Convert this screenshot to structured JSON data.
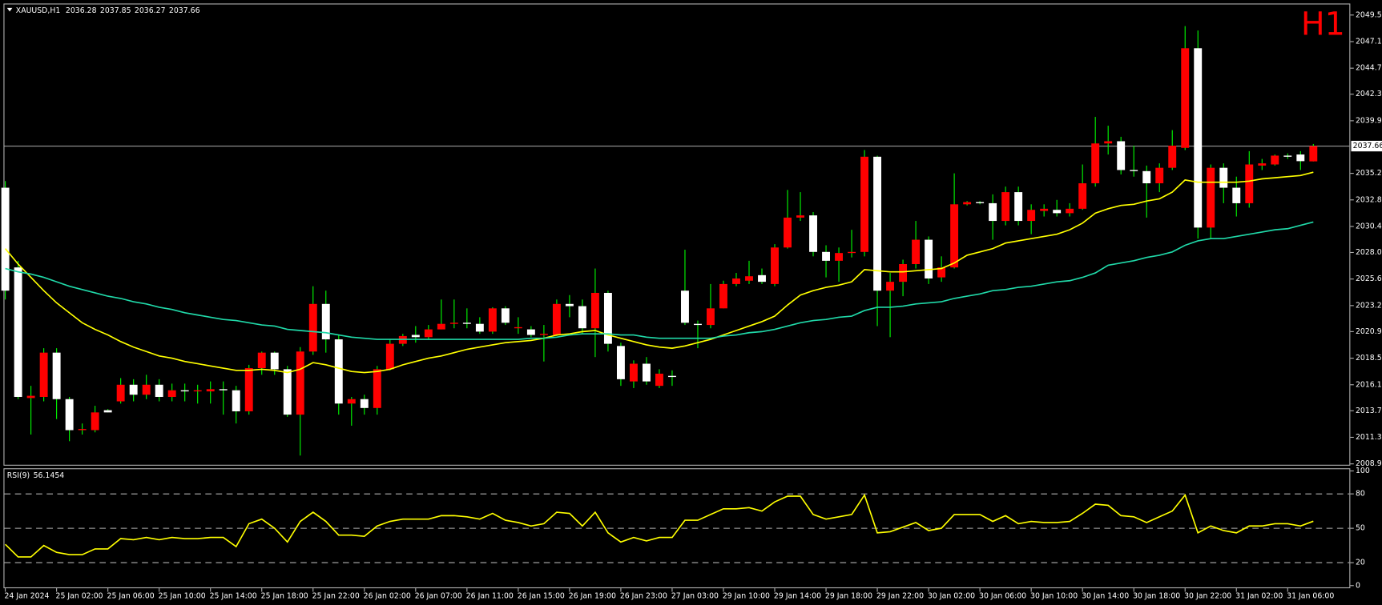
{
  "header": {
    "symbol": "XAUUSD,H1",
    "open": 2036.28,
    "high": 2037.85,
    "low": 2036.27,
    "close": 2037.66
  },
  "timeframe_badge": "H1",
  "chart_data": [
    {
      "type": "candlestick",
      "up_color": "#ff0000",
      "down_color": "#ffffff",
      "wick_color": "#00ff00",
      "ylim": [
        2008.79,
        2050.54
      ],
      "yticks": [
        {
          "value": 2049.5,
          "label": "2049.50"
        },
        {
          "value": 2047.1,
          "label": "2047.10"
        },
        {
          "value": 2044.7,
          "label": "2044.70"
        },
        2042.35,
        2039.95,
        {
          "value": 2035.2,
          "label": "2035.20"
        },
        {
          "value": 2032.8,
          "label": "2032.80"
        },
        {
          "value": 2030.4,
          "label": "2030.40"
        },
        2028.05,
        2025.65,
        2023.25,
        {
          "value": 2020.9,
          "label": "2020.90"
        },
        {
          "value": 2018.5,
          "label": "2018.50"
        },
        {
          "value": 2016.1,
          "label": "2016.10"
        },
        2013.75,
        2011.35,
        2008.95
      ],
      "current_price": 2037.66,
      "open": [
        2033.9,
        2026.7,
        2014.9,
        2015.0,
        2019.0,
        2014.8,
        2012.0,
        2012.0,
        2013.8,
        2014.6,
        2016.1,
        2015.2,
        2016.1,
        2015.0,
        2015.6,
        2015.5,
        2015.5,
        2015.7,
        2015.6,
        2013.7,
        2017.6,
        2019.0,
        2017.5,
        2013.4,
        2019.1,
        2023.4,
        2020.2,
        2014.4,
        2014.8,
        2014.0,
        2017.5,
        2019.8,
        2020.6,
        2020.4,
        2021.1,
        2021.6,
        2021.7,
        2021.6,
        2020.9,
        2023.0,
        2021.2,
        2021.1,
        2020.6,
        2020.6,
        2023.4,
        2023.2,
        2021.2,
        2024.4,
        2019.6,
        2016.4,
        2018.0,
        2016.0,
        2016.9,
        2024.6,
        2021.6,
        2021.5,
        2023.0,
        2025.2,
        2025.5,
        2026.0,
        2025.2,
        2028.5,
        2031.2,
        2031.4,
        2028.1,
        2027.3,
        2028.0,
        2028.1,
        2036.7,
        2024.6,
        2025.4,
        2027.0,
        2029.2,
        2025.8,
        2026.7,
        2032.4,
        2032.6,
        2032.5,
        2030.9,
        2033.5,
        2030.9,
        2031.8,
        2031.9,
        2031.6,
        2032.0,
        2034.3,
        2037.9,
        2038.1,
        2035.5,
        2035.4,
        2034.3,
        2035.7,
        2037.5,
        2046.5,
        2030.3,
        2035.7,
        2033.9,
        2032.5,
        2035.9,
        2036.0,
        2036.8,
        2036.9,
        2036.28
      ],
      "high": [
        2034.5,
        2027.3,
        2016.0,
        2019.4,
        2019.4,
        2015.0,
        2012.6,
        2014.2,
        2013.9,
        2016.7,
        2016.6,
        2017.0,
        2016.6,
        2016.2,
        2016.2,
        2016.1,
        2016.4,
        2016.4,
        2016.0,
        2017.9,
        2019.1,
        2019.1,
        2017.8,
        2019.5,
        2025.0,
        2024.6,
        2020.6,
        2015.0,
        2015.2,
        2017.8,
        2020.2,
        2020.7,
        2021.4,
        2021.5,
        2023.8,
        2023.8,
        2023.0,
        2022.2,
        2023.1,
        2023.2,
        2022.2,
        2021.4,
        2021.5,
        2023.8,
        2024.2,
        2023.8,
        2026.6,
        2024.6,
        2019.9,
        2018.3,
        2018.6,
        2017.5,
        2017.4,
        2028.3,
        2021.9,
        2025.2,
        2025.5,
        2026.2,
        2027.3,
        2026.6,
        2028.8,
        2033.7,
        2033.5,
        2031.7,
        2028.7,
        2028.5,
        2030.1,
        2037.3,
        2036.8,
        2026.2,
        2027.4,
        2030.9,
        2029.5,
        2027.7,
        2035.2,
        2032.7,
        2032.7,
        2033.3,
        2034.0,
        2034.0,
        2032.4,
        2032.4,
        2032.8,
        2032.5,
        2036.0,
        2040.3,
        2039.5,
        2038.5,
        2037.7,
        2035.9,
        2036.1,
        2039.1,
        2048.5,
        2048.1,
        2036.0,
        2036.1,
        2034.9,
        2037.2,
        2036.5,
        2036.9,
        2037.0,
        2037.2,
        2037.85
      ],
      "low": [
        2023.8,
        2014.8,
        2011.6,
        2014.6,
        2013.0,
        2011.0,
        2011.6,
        2011.8,
        2013.6,
        2014.4,
        2014.6,
        2014.8,
        2014.6,
        2014.6,
        2014.6,
        2014.4,
        2014.4,
        2013.4,
        2012.6,
        2013.4,
        2017.0,
        2017.0,
        2013.2,
        2009.7,
        2018.8,
        2019.0,
        2013.4,
        2012.4,
        2013.4,
        2013.4,
        2017.4,
        2019.6,
        2019.9,
        2020.2,
        2021.1,
        2021.2,
        2021.2,
        2020.7,
        2020.7,
        2021.5,
        2020.7,
        2020.4,
        2018.2,
        2020.5,
        2022.2,
        2020.7,
        2018.6,
        2019.1,
        2016.0,
        2015.8,
        2016.1,
        2015.8,
        2016.0,
        2021.5,
        2019.4,
        2021.2,
        2023.0,
        2025.0,
        2025.2,
        2025.2,
        2025.0,
        2028.4,
        2030.9,
        2027.7,
        2025.8,
        2025.4,
        2027.6,
        2027.7,
        2021.4,
        2020.4,
        2024.1,
        2026.6,
        2025.2,
        2025.4,
        2026.6,
        2032.3,
        2032.4,
        2029.2,
        2030.5,
        2030.5,
        2029.7,
        2031.3,
        2031.3,
        2031.3,
        2031.9,
        2034.0,
        2036.9,
        2035.1,
        2034.9,
        2031.2,
        2033.5,
        2035.5,
        2037.3,
        2029.3,
        2029.3,
        2032.5,
        2031.3,
        2032.1,
        2035.5,
        2035.9,
        2036.5,
        2035.5,
        2036.27
      ],
      "close": [
        2024.6,
        2015.0,
        2015.1,
        2019.0,
        2014.8,
        2012.0,
        2012.1,
        2013.6,
        2013.6,
        2016.1,
        2015.2,
        2016.1,
        2015.0,
        2015.6,
        2015.5,
        2015.6,
        2015.7,
        2015.6,
        2013.7,
        2017.6,
        2019.0,
        2017.5,
        2013.4,
        2019.1,
        2023.4,
        2020.2,
        2014.4,
        2014.8,
        2014.0,
        2017.5,
        2019.8,
        2020.5,
        2020.4,
        2021.1,
        2021.6,
        2021.7,
        2021.6,
        2020.9,
        2023.0,
        2021.7,
        2021.3,
        2020.6,
        2020.7,
        2023.4,
        2023.2,
        2021.2,
        2024.4,
        2019.8,
        2016.6,
        2018.0,
        2016.4,
        2017.1,
        2016.8,
        2021.7,
        2021.5,
        2023.0,
        2025.2,
        2025.7,
        2025.9,
        2025.4,
        2028.5,
        2031.2,
        2031.4,
        2028.1,
        2027.3,
        2028.0,
        2028.1,
        2036.7,
        2024.6,
        2025.4,
        2027.0,
        2029.2,
        2025.7,
        2026.7,
        2032.4,
        2032.6,
        2032.5,
        2030.9,
        2033.5,
        2030.9,
        2031.9,
        2032.0,
        2031.6,
        2032.0,
        2034.3,
        2037.9,
        2038.1,
        2035.5,
        2035.4,
        2034.3,
        2035.7,
        2037.7,
        2046.5,
        2030.3,
        2035.7,
        2033.9,
        2032.5,
        2036.0,
        2036.1,
        2036.8,
        2036.7,
        2036.3,
        2037.66
      ],
      "overlays": [
        {
          "color": "#ffff00",
          "values": [
            2028.4,
            2027.0,
            2025.8,
            2024.6,
            2023.5,
            2022.6,
            2021.7,
            2021.1,
            2020.6,
            2020.0,
            2019.5,
            2019.1,
            2018.7,
            2018.5,
            2018.2,
            2018.0,
            2017.8,
            2017.6,
            2017.4,
            2017.4,
            2017.5,
            2017.4,
            2017.2,
            2017.5,
            2018.1,
            2017.9,
            2017.6,
            2017.3,
            2017.2,
            2017.3,
            2017.5,
            2017.9,
            2018.2,
            2018.5,
            2018.7,
            2019.0,
            2019.3,
            2019.5,
            2019.7,
            2019.9,
            2020.0,
            2020.1,
            2020.3,
            2020.6,
            2020.7,
            2020.9,
            2021.0,
            2020.6,
            2020.3,
            2020.0,
            2019.7,
            2019.5,
            2019.4,
            2019.6,
            2019.9,
            2020.2,
            2020.6,
            2021.0,
            2021.4,
            2021.8,
            2022.3,
            2023.3,
            2024.2,
            2024.6,
            2024.9,
            2025.1,
            2025.4,
            2026.5,
            2026.4,
            2026.3,
            2026.3,
            2026.4,
            2026.5,
            2026.6,
            2027.1,
            2027.8,
            2028.1,
            2028.4,
            2028.9,
            2029.1,
            2029.3,
            2029.5,
            2029.7,
            2030.1,
            2030.7,
            2031.6,
            2032.0,
            2032.3,
            2032.4,
            2032.7,
            2032.9,
            2033.5,
            2034.6,
            2034.4,
            2034.4,
            2034.4,
            2034.4,
            2034.5,
            2034.7,
            2034.8,
            2034.9,
            2035.0,
            2035.3
          ]
        },
        {
          "color": "#20d8a8",
          "values": [
            2026.6,
            2026.3,
            2026.1,
            2025.8,
            2025.4,
            2025.0,
            2024.7,
            2024.4,
            2024.1,
            2023.9,
            2023.6,
            2023.4,
            2023.1,
            2022.9,
            2022.6,
            2022.4,
            2022.2,
            2022.0,
            2021.9,
            2021.7,
            2021.5,
            2021.4,
            2021.1,
            2021.0,
            2020.9,
            2020.8,
            2020.6,
            2020.4,
            2020.3,
            2020.2,
            2020.2,
            2020.2,
            2020.2,
            2020.2,
            2020.2,
            2020.2,
            2020.2,
            2020.2,
            2020.2,
            2020.2,
            2020.2,
            2020.3,
            2020.3,
            2020.4,
            2020.6,
            2020.7,
            2020.7,
            2020.7,
            2020.6,
            2020.6,
            2020.4,
            2020.3,
            2020.3,
            2020.3,
            2020.3,
            2020.3,
            2020.5,
            2020.6,
            2020.8,
            2020.9,
            2021.1,
            2021.4,
            2021.7,
            2021.9,
            2022.0,
            2022.2,
            2022.3,
            2022.8,
            2023.1,
            2023.1,
            2023.2,
            2023.4,
            2023.5,
            2023.6,
            2023.9,
            2024.1,
            2024.3,
            2024.6,
            2024.7,
            2024.9,
            2025.0,
            2025.2,
            2025.4,
            2025.5,
            2025.8,
            2026.2,
            2026.9,
            2027.1,
            2027.3,
            2027.6,
            2027.8,
            2028.1,
            2028.7,
            2029.1,
            2029.3,
            2029.3,
            2029.5,
            2029.7,
            2029.9,
            2030.1,
            2030.2,
            2030.5,
            2030.8
          ]
        }
      ]
    },
    {
      "type": "line",
      "title": "RSI(9)",
      "current": 56.1454,
      "color": "#ffff00",
      "ylim": [
        -2.3,
        102.3
      ],
      "yticks": [
        100,
        80,
        50,
        20,
        0
      ],
      "levels": [
        80,
        50,
        20
      ],
      "values": [
        36,
        25,
        25,
        35,
        29,
        27,
        27,
        32,
        32,
        41,
        40,
        42,
        40,
        42,
        41,
        41,
        42,
        42,
        34,
        54,
        58,
        50,
        38,
        56,
        64,
        56,
        44,
        44,
        43,
        52,
        56,
        58,
        58,
        58,
        61,
        61,
        60,
        58,
        63,
        57,
        55,
        52,
        54,
        64,
        63,
        52,
        64,
        46,
        38,
        42,
        39,
        42,
        42,
        57,
        57,
        62,
        67,
        67,
        68,
        65,
        73,
        78,
        78,
        62,
        58,
        60,
        62,
        79,
        46,
        47,
        51,
        55,
        48,
        50,
        62,
        62,
        62,
        56,
        61,
        54,
        56,
        55,
        55,
        56,
        63,
        71,
        70,
        61,
        60,
        55,
        60,
        65,
        79,
        46,
        52,
        48,
        46,
        52,
        52,
        54,
        54,
        52,
        56.1454
      ],
      "categories": [
        "24 Jan 2024",
        null,
        null,
        null,
        "25 Jan 02:00",
        null,
        null,
        null,
        "25 Jan 06:00",
        null,
        null,
        null,
        "25 Jan 10:00",
        null,
        null,
        null,
        "25 Jan 14:00",
        null,
        null,
        null,
        "25 Jan 18:00",
        null,
        null,
        null,
        "25 Jan 22:00",
        null,
        null,
        null,
        "26 Jan 02:00",
        null,
        null,
        null,
        "26 Jan 07:00",
        null,
        null,
        null,
        "26 Jan 11:00",
        null,
        null,
        null,
        "26 Jan 15:00",
        null,
        null,
        null,
        "26 Jan 19:00",
        null,
        null,
        null,
        "26 Jan 23:00",
        null,
        null,
        null,
        "27 Jan 03:00",
        null,
        null,
        null,
        "29 Jan 10:00",
        null,
        null,
        null,
        "29 Jan 14:00",
        null,
        null,
        null,
        "29 Jan 18:00",
        null,
        null,
        null,
        "29 Jan 22:00",
        null,
        null,
        null,
        "30 Jan 02:00",
        null,
        null,
        null,
        "30 Jan 06:00",
        null,
        null,
        null,
        "30 Jan 10:00",
        null,
        null,
        null,
        "30 Jan 14:00",
        null,
        null,
        null,
        "30 Jan 18:00",
        null,
        null,
        null,
        "30 Jan 22:00",
        null,
        null,
        null,
        "31 Jan 02:00",
        null,
        null,
        null,
        "31 Jan 06:00",
        null,
        null
      ]
    }
  ]
}
